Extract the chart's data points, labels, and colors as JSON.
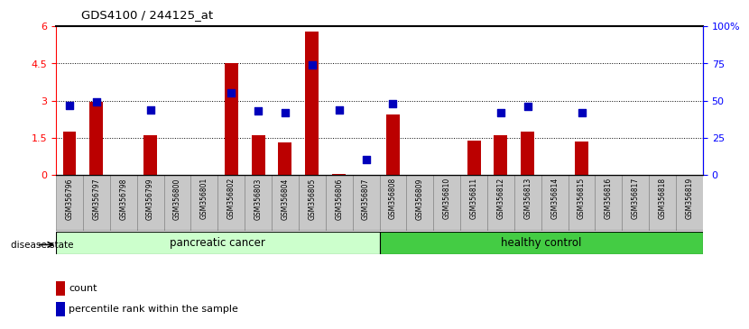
{
  "title": "GDS4100 / 244125_at",
  "samples": [
    "GSM356796",
    "GSM356797",
    "GSM356798",
    "GSM356799",
    "GSM356800",
    "GSM356801",
    "GSM356802",
    "GSM356803",
    "GSM356804",
    "GSM356805",
    "GSM356806",
    "GSM356807",
    "GSM356808",
    "GSM356809",
    "GSM356810",
    "GSM356811",
    "GSM356812",
    "GSM356813",
    "GSM356814",
    "GSM356815",
    "GSM356816",
    "GSM356817",
    "GSM356818",
    "GSM356819"
  ],
  "count_values": [
    1.75,
    2.95,
    0.0,
    1.6,
    0.0,
    0.0,
    4.5,
    1.6,
    1.3,
    5.8,
    0.05,
    0.0,
    2.45,
    0.0,
    0.0,
    1.4,
    1.6,
    1.75,
    0.0,
    1.35,
    0.0,
    0.0,
    0.0,
    0.0
  ],
  "percentile_values": [
    47,
    49,
    0,
    44,
    0,
    0,
    55,
    43,
    42,
    74,
    44,
    10,
    48,
    0,
    0,
    0,
    42,
    46,
    0,
    42,
    0,
    0,
    0,
    0
  ],
  "ylim_left": [
    0,
    6
  ],
  "ylim_right": [
    0,
    100
  ],
  "yticks_left": [
    0,
    1.5,
    3.0,
    4.5,
    6
  ],
  "yticks_left_labels": [
    "0",
    "1.5",
    "3",
    "4.5",
    "6"
  ],
  "yticks_right": [
    0,
    25,
    50,
    75,
    100
  ],
  "yticks_right_labels": [
    "0",
    "25",
    "50",
    "75",
    "100%"
  ],
  "bar_color": "#bb0000",
  "dot_color": "#0000bb",
  "tick_bg_color": "#c8c8c8",
  "pancreatic_bg": "#ccffcc",
  "healthy_bg": "#44cc44",
  "disease_state_label": "disease state",
  "pancreatic_label": "pancreatic cancer",
  "healthy_label": "healthy control",
  "legend_count": "count",
  "legend_percentile": "percentile rank within the sample",
  "n_pancreatic": 12,
  "n_healthy": 12
}
